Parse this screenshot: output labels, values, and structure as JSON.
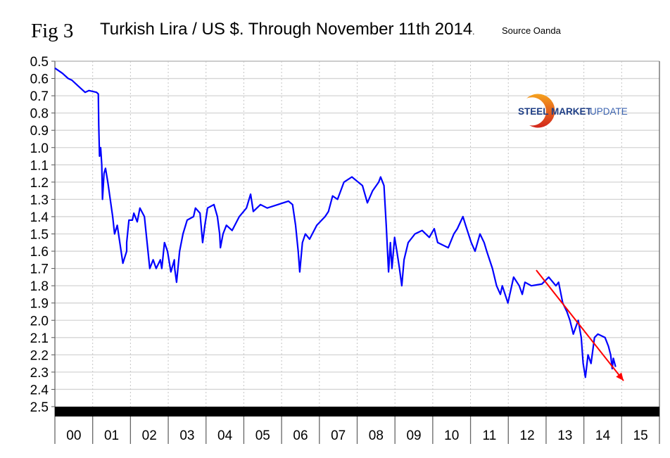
{
  "header": {
    "fig_label": "Fig 3",
    "title": "Turkish Lira / US $. Through November 11th 2014",
    "title_suffix": ".",
    "source": "Source Oanda"
  },
  "logo": {
    "word1": "STEEL",
    "word2": "MARKET",
    "word3": "UPDATE",
    "colors": {
      "navy": "#1f3f86",
      "blue": "#3d64b0",
      "orange": "#f08a1c",
      "red": "#d3251c"
    }
  },
  "chart_data": {
    "type": "line",
    "title": "Turkish Lira / US $. Through November 11th 2014.",
    "xlabel": "",
    "ylabel": "",
    "y_inverted": true,
    "ylim": [
      0.5,
      2.5
    ],
    "yticks": [
      "0.5",
      "0.6",
      "0.7",
      "0.8",
      "0.9",
      "1.0",
      "1.1",
      "1.2",
      "1.3",
      "1.4",
      "1.5",
      "1.6",
      "1.7",
      "1.8",
      "1.9",
      "2.0",
      "2.1",
      "2.2",
      "2.3",
      "2.4",
      "2.5"
    ],
    "xlim": [
      2000,
      2016
    ],
    "xtick_labels": [
      "00",
      "01",
      "02",
      "03",
      "04",
      "05",
      "06",
      "07",
      "08",
      "09",
      "10",
      "11",
      "12",
      "13",
      "14",
      "15"
    ],
    "grid": true,
    "series": [
      {
        "color": "#0000ff",
        "points": [
          [
            2000.0,
            0.54
          ],
          [
            2000.2,
            0.57
          ],
          [
            2000.35,
            0.6
          ],
          [
            2000.45,
            0.61
          ],
          [
            2000.6,
            0.64
          ],
          [
            2000.8,
            0.68
          ],
          [
            2000.9,
            0.67
          ],
          [
            2001.1,
            0.68
          ],
          [
            2001.15,
            0.69
          ],
          [
            2001.16,
            0.87
          ],
          [
            2001.18,
            1.05
          ],
          [
            2001.21,
            1.0
          ],
          [
            2001.24,
            1.1
          ],
          [
            2001.26,
            1.3
          ],
          [
            2001.3,
            1.15
          ],
          [
            2001.34,
            1.12
          ],
          [
            2001.4,
            1.2
          ],
          [
            2001.53,
            1.4
          ],
          [
            2001.58,
            1.5
          ],
          [
            2001.65,
            1.45
          ],
          [
            2001.8,
            1.67
          ],
          [
            2001.9,
            1.6
          ],
          [
            2001.9,
            1.55
          ],
          [
            2001.96,
            1.42
          ],
          [
            2002.05,
            1.42
          ],
          [
            2002.09,
            1.38
          ],
          [
            2002.18,
            1.43
          ],
          [
            2002.25,
            1.35
          ],
          [
            2002.37,
            1.4
          ],
          [
            2002.44,
            1.55
          ],
          [
            2002.51,
            1.7
          ],
          [
            2002.6,
            1.65
          ],
          [
            2002.68,
            1.7
          ],
          [
            2002.79,
            1.65
          ],
          [
            2002.83,
            1.7
          ],
          [
            2002.9,
            1.55
          ],
          [
            2002.98,
            1.6
          ],
          [
            2003.07,
            1.72
          ],
          [
            2003.16,
            1.65
          ],
          [
            2003.17,
            1.7
          ],
          [
            2003.22,
            1.78
          ],
          [
            2003.3,
            1.6
          ],
          [
            2003.39,
            1.5
          ],
          [
            2003.5,
            1.42
          ],
          [
            2003.67,
            1.4
          ],
          [
            2003.72,
            1.35
          ],
          [
            2003.84,
            1.38
          ],
          [
            2003.91,
            1.55
          ],
          [
            2003.97,
            1.45
          ],
          [
            2004.04,
            1.35
          ],
          [
            2004.21,
            1.33
          ],
          [
            2004.3,
            1.4
          ],
          [
            2004.36,
            1.5
          ],
          [
            2004.38,
            1.58
          ],
          [
            2004.45,
            1.5
          ],
          [
            2004.54,
            1.45
          ],
          [
            2004.69,
            1.48
          ],
          [
            2004.88,
            1.4
          ],
          [
            2005.07,
            1.35
          ],
          [
            2005.18,
            1.27
          ],
          [
            2005.25,
            1.37
          ],
          [
            2005.44,
            1.33
          ],
          [
            2005.62,
            1.35
          ],
          [
            2005.9,
            1.33
          ],
          [
            2006.18,
            1.31
          ],
          [
            2006.29,
            1.33
          ],
          [
            2006.37,
            1.45
          ],
          [
            2006.44,
            1.6
          ],
          [
            2006.48,
            1.72
          ],
          [
            2006.55,
            1.55
          ],
          [
            2006.63,
            1.5
          ],
          [
            2006.74,
            1.53
          ],
          [
            2006.93,
            1.45
          ],
          [
            2007.15,
            1.4
          ],
          [
            2007.24,
            1.37
          ],
          [
            2007.35,
            1.28
          ],
          [
            2007.48,
            1.3
          ],
          [
            2007.65,
            1.2
          ],
          [
            2007.86,
            1.17
          ],
          [
            2008.14,
            1.22
          ],
          [
            2008.27,
            1.32
          ],
          [
            2008.41,
            1.25
          ],
          [
            2008.57,
            1.2
          ],
          [
            2008.62,
            1.17
          ],
          [
            2008.71,
            1.22
          ],
          [
            2008.77,
            1.45
          ],
          [
            2008.83,
            1.72
          ],
          [
            2008.88,
            1.55
          ],
          [
            2008.92,
            1.7
          ],
          [
            2008.99,
            1.52
          ],
          [
            2009.05,
            1.6
          ],
          [
            2009.12,
            1.7
          ],
          [
            2009.18,
            1.8
          ],
          [
            2009.24,
            1.65
          ],
          [
            2009.35,
            1.55
          ],
          [
            2009.53,
            1.5
          ],
          [
            2009.72,
            1.48
          ],
          [
            2009.91,
            1.52
          ],
          [
            2010.04,
            1.47
          ],
          [
            2010.13,
            1.55
          ],
          [
            2010.41,
            1.58
          ],
          [
            2010.56,
            1.5
          ],
          [
            2010.65,
            1.47
          ],
          [
            2010.8,
            1.4
          ],
          [
            2010.87,
            1.45
          ],
          [
            2011.02,
            1.55
          ],
          [
            2011.12,
            1.6
          ],
          [
            2011.25,
            1.5
          ],
          [
            2011.36,
            1.55
          ],
          [
            2011.43,
            1.6
          ],
          [
            2011.58,
            1.7
          ],
          [
            2011.69,
            1.8
          ],
          [
            2011.79,
            1.85
          ],
          [
            2011.84,
            1.8
          ],
          [
            2011.99,
            1.9
          ],
          [
            2012.07,
            1.82
          ],
          [
            2012.14,
            1.75
          ],
          [
            2012.29,
            1.8
          ],
          [
            2012.37,
            1.85
          ],
          [
            2012.44,
            1.78
          ],
          [
            2012.61,
            1.8
          ],
          [
            2012.89,
            1.79
          ],
          [
            2013.07,
            1.75
          ],
          [
            2013.26,
            1.8
          ],
          [
            2013.33,
            1.78
          ],
          [
            2013.44,
            1.9
          ],
          [
            2013.55,
            1.95
          ],
          [
            2013.63,
            2.0
          ],
          [
            2013.72,
            2.08
          ],
          [
            2013.85,
            2.0
          ],
          [
            2013.93,
            2.1
          ],
          [
            2013.98,
            2.25
          ],
          [
            2014.04,
            2.33
          ],
          [
            2014.11,
            2.2
          ],
          [
            2014.19,
            2.25
          ],
          [
            2014.28,
            2.1
          ],
          [
            2014.37,
            2.08
          ],
          [
            2014.56,
            2.1
          ],
          [
            2014.65,
            2.15
          ],
          [
            2014.71,
            2.2
          ],
          [
            2014.75,
            2.28
          ],
          [
            2014.78,
            2.22
          ],
          [
            2014.84,
            2.27
          ]
        ]
      }
    ],
    "trend_arrow": {
      "color": "#ff0000",
      "from": [
        2012.74,
        1.71
      ],
      "to": [
        2015.05,
        2.35
      ]
    }
  }
}
